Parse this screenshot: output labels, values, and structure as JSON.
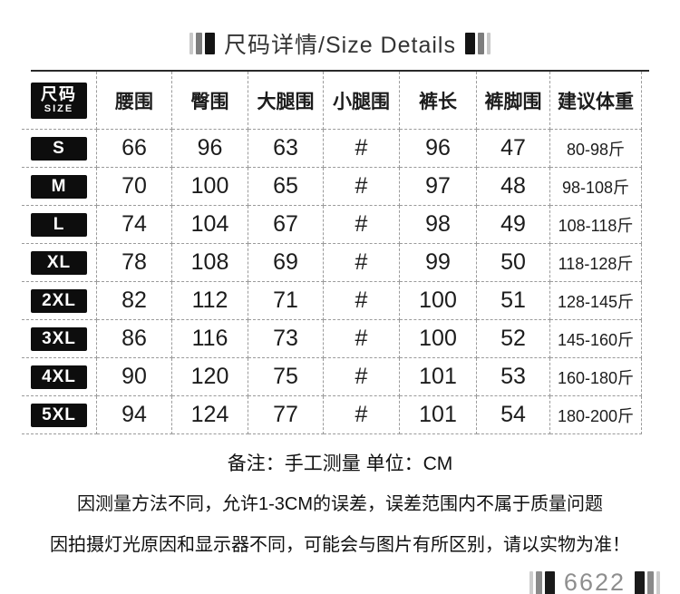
{
  "title": {
    "text": "尺码详情/Size Details"
  },
  "table": {
    "header": {
      "size_zh": "尺码",
      "size_en": "SIZE",
      "columns": [
        "腰围",
        "臀围",
        "大腿围",
        "小腿围",
        "裤长",
        "裤脚围",
        "建议体重"
      ]
    },
    "rows": [
      {
        "size": "S",
        "values": [
          "66",
          "96",
          "63",
          "#",
          "96",
          "47",
          "80-98斤"
        ]
      },
      {
        "size": "M",
        "values": [
          "70",
          "100",
          "65",
          "#",
          "97",
          "48",
          "98-108斤"
        ]
      },
      {
        "size": "L",
        "values": [
          "74",
          "104",
          "67",
          "#",
          "98",
          "49",
          "108-118斤"
        ]
      },
      {
        "size": "XL",
        "values": [
          "78",
          "108",
          "69",
          "#",
          "99",
          "50",
          "118-128斤"
        ]
      },
      {
        "size": "2XL",
        "values": [
          "82",
          "112",
          "71",
          "#",
          "100",
          "51",
          "128-145斤"
        ]
      },
      {
        "size": "3XL",
        "values": [
          "86",
          "116",
          "73",
          "#",
          "100",
          "52",
          "145-160斤"
        ]
      },
      {
        "size": "4XL",
        "values": [
          "90",
          "120",
          "75",
          "#",
          "101",
          "53",
          "160-180斤"
        ]
      },
      {
        "size": "5XL",
        "values": [
          "94",
          "124",
          "77",
          "#",
          "101",
          "54",
          "180-200斤"
        ]
      }
    ]
  },
  "notes": {
    "remark": "备注：手工测量 单位：CM",
    "line1": "因测量方法不同，允许1-3CM的误差，误差范围内不属于质量问题",
    "line2": "因拍摄灯光原因和显示器不同，可能会与图片有所区别，请以实物为准！"
  },
  "footer": {
    "code": "6622"
  },
  "colors": {
    "badge_bg": "#0d0d0d",
    "dash_line": "#9b9b9b",
    "bar_light": "#c8c8c8",
    "bar_mid": "#7d7d7d",
    "bar_dark": "#141414",
    "footer_text": "#8e8e8e"
  }
}
